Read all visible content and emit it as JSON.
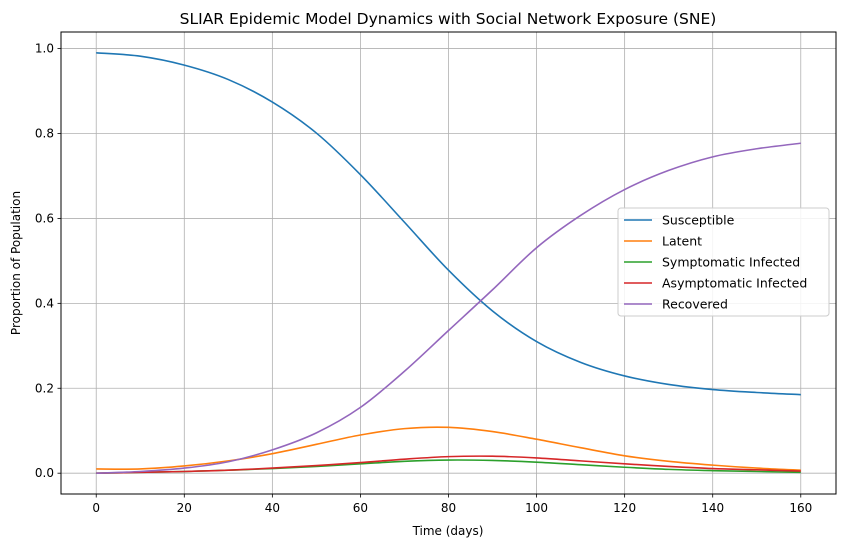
{
  "chart_data": {
    "type": "line",
    "title": "SLIAR Epidemic Model Dynamics with Social Network Exposure (SNE)",
    "xlabel": "Time (days)",
    "ylabel": "Proportion of Population",
    "xlim": [
      -8,
      168
    ],
    "ylim": [
      -0.049,
      1.039
    ],
    "xticks": [
      0,
      20,
      40,
      60,
      80,
      100,
      120,
      140,
      160
    ],
    "xtick_labels": [
      "0",
      "20",
      "40",
      "60",
      "80",
      "100",
      "120",
      "140",
      "160"
    ],
    "yticks": [
      0.0,
      0.2,
      0.4,
      0.6,
      0.8,
      1.0
    ],
    "ytick_labels": [
      "0.0",
      "0.2",
      "0.4",
      "0.6",
      "0.8",
      "1.0"
    ],
    "grid": true,
    "legend_position": "center-right",
    "x": [
      0,
      10,
      20,
      30,
      40,
      50,
      60,
      70,
      80,
      90,
      100,
      110,
      120,
      130,
      140,
      150,
      160
    ],
    "series": [
      {
        "name": "Susceptible",
        "color": "#1f77b4",
        "values": [
          0.99,
          0.982,
          0.961,
          0.927,
          0.874,
          0.801,
          0.703,
          0.591,
          0.478,
          0.382,
          0.31,
          0.261,
          0.229,
          0.209,
          0.197,
          0.19,
          0.185
        ]
      },
      {
        "name": "Latent",
        "color": "#ff7f0e",
        "values": [
          0.01,
          0.01,
          0.017,
          0.029,
          0.046,
          0.068,
          0.09,
          0.105,
          0.108,
          0.098,
          0.08,
          0.06,
          0.041,
          0.028,
          0.019,
          0.012,
          0.007
        ]
      },
      {
        "name": "Symptomatic Infected",
        "color": "#2ca02c",
        "values": [
          0.0,
          0.002,
          0.004,
          0.007,
          0.011,
          0.016,
          0.022,
          0.028,
          0.031,
          0.03,
          0.026,
          0.02,
          0.014,
          0.009,
          0.006,
          0.004,
          0.002
        ]
      },
      {
        "name": "Asymptomatic Infected",
        "color": "#d62728",
        "values": [
          0.0,
          0.002,
          0.004,
          0.007,
          0.012,
          0.018,
          0.025,
          0.033,
          0.039,
          0.04,
          0.036,
          0.029,
          0.022,
          0.016,
          0.011,
          0.008,
          0.005
        ]
      },
      {
        "name": "Recovered",
        "color": "#9467bd",
        "values": [
          0.0,
          0.004,
          0.012,
          0.027,
          0.055,
          0.095,
          0.155,
          0.24,
          0.336,
          0.432,
          0.531,
          0.607,
          0.668,
          0.713,
          0.745,
          0.764,
          0.777
        ]
      }
    ]
  }
}
